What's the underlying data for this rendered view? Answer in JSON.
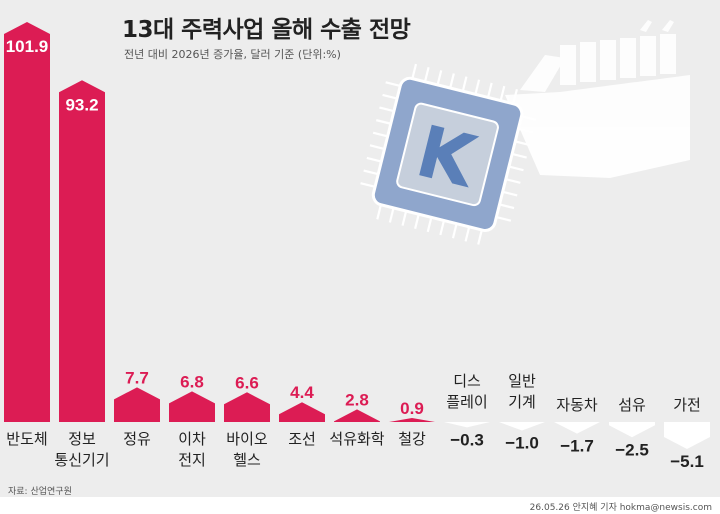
{
  "title": "13대 주력사업 올해 수출 전망",
  "subtitle": "전년 대비 2026년 증가율, 달러 기준 (단위:%)",
  "source": "자료: 산업연구원",
  "credit": "26.05.26 안지혜 기자 hokma@newsis.com",
  "colors": {
    "positive": "#dc1c54",
    "negative": "#ffffff",
    "background": "#ededed",
    "label": "#222222"
  },
  "chart_data": {
    "type": "bar",
    "categories": [
      "반도체",
      "정보\n통신기기",
      "정유",
      "이차\n전지",
      "바이오\n헬스",
      "조선",
      "석유화학",
      "철강",
      "디스\n플레이",
      "일반\n기계",
      "자동차",
      "섬유",
      "가전"
    ],
    "values": [
      101.9,
      93.2,
      7.7,
      6.8,
      6.6,
      4.4,
      2.8,
      0.9,
      -0.3,
      -1.0,
      -1.7,
      -2.5,
      -5.1
    ],
    "labels": [
      "101.9",
      "93.2",
      "7.7",
      "6.8",
      "6.6",
      "4.4",
      "2.8",
      "0.9",
      "−0.3",
      "−1.0",
      "−1.7",
      "−2.5",
      "−5.1"
    ],
    "unit": "%",
    "baseline": 0
  }
}
